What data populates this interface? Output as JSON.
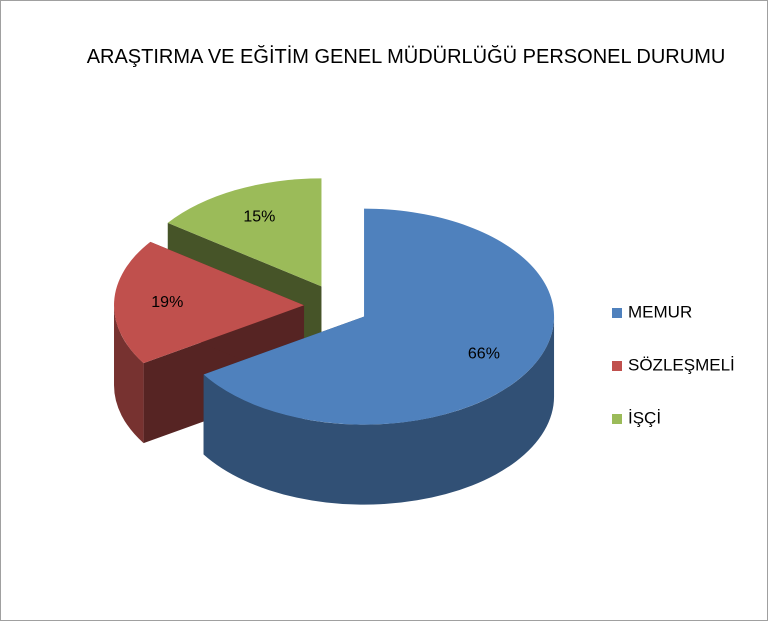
{
  "chart_data": {
    "type": "pie",
    "title": "ARAŞTIRMA VE EĞİTİM GENEL MÜDÜRLÜĞÜ PERSONEL DURUMU",
    "categories": [
      "MEMUR",
      "SÖZLEŞMELİ",
      "İŞÇİ"
    ],
    "values": [
      66,
      19,
      15
    ],
    "value_labels": [
      "66%",
      "19%",
      "15%"
    ],
    "colors": [
      "#4f81bd",
      "#c0504d",
      "#9bbb59"
    ],
    "legend": "right"
  }
}
